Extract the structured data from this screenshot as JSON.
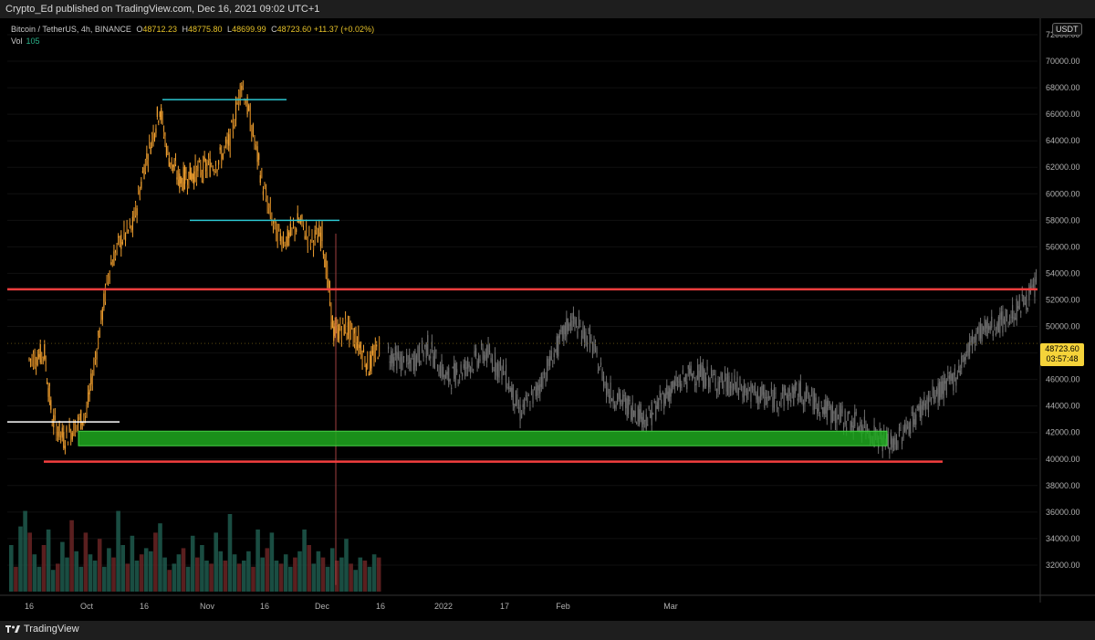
{
  "header": {
    "published": "Crypto_Ed published on TradingView.com, Dec 16, 2021 09:02 UTC+1"
  },
  "legend": {
    "symbol": "Bitcoin / TetherUS, 4h, BINANCE",
    "open_label": "O",
    "open": "48712.23",
    "high_label": "H",
    "high": "48775.80",
    "low_label": "L",
    "low": "48699.99",
    "close_label": "C",
    "close": "48723.60",
    "change": "+11.37 (+0.02%)",
    "vol_label": "Vol",
    "vol": "105"
  },
  "currency_badge": "USDT",
  "price_tag": {
    "price": "48723.60",
    "countdown": "03:57:48"
  },
  "footer": {
    "brand": "TradingView"
  },
  "colors": {
    "candle_orange": "#f0a030",
    "candle_projection": "#6f6f6f",
    "resistance": "#f23e3e",
    "support_zone": "#1ea81e",
    "cyan_level": "#2cc6d0",
    "white_level": "#ffffff",
    "price_tag_bg": "#f5d33a"
  },
  "chart_data": {
    "type": "line",
    "ylim": [
      30000,
      72000
    ],
    "y_ticks": [
      "72000.00",
      "70000.00",
      "68000.00",
      "66000.00",
      "64000.00",
      "62000.00",
      "60000.00",
      "58000.00",
      "56000.00",
      "54000.00",
      "52000.00",
      "50000.00",
      "48000.00",
      "46000.00",
      "44000.00",
      "42000.00",
      "40000.00",
      "38000.00",
      "36000.00",
      "34000.00",
      "32000.00"
    ],
    "x_ticks": [
      "16",
      "Oct",
      "16",
      "Nov",
      "16",
      "Dec",
      "16",
      "2022",
      "17",
      "Feb",
      "Mar"
    ],
    "series": [
      {
        "x": [
          "Sep 16",
          "Sep 20",
          "Sep 22",
          "Sep 25",
          "Sep 28",
          "Oct 1",
          "Oct 4",
          "Oct 7",
          "Oct 10",
          "Oct 13",
          "Oct 16",
          "Oct 20",
          "Oct 22",
          "Oct 25",
          "Oct 28",
          "Nov 1",
          "Nov 4",
          "Nov 7",
          "Nov 10",
          "Nov 13",
          "Nov 16",
          "Nov 19",
          "Nov 22",
          "Nov 25",
          "Nov 28",
          "Dec 1",
          "Dec 4",
          "Dec 7",
          "Dec 10",
          "Dec 13",
          "Dec 16"
        ],
        "values": [
          47500,
          48000,
          43000,
          41500,
          42500,
          43500,
          49000,
          54500,
          56500,
          57500,
          62000,
          66500,
          63000,
          61000,
          61500,
          62000,
          62500,
          64000,
          68500,
          64500,
          60000,
          57000,
          56500,
          58000,
          56500,
          57000,
          49500,
          50000,
          49000,
          47000,
          48700
        ]
      },
      {
        "x": [
          "Dec 18",
          "Dec 23",
          "Dec 28",
          "Jan 2",
          "Jan 7",
          "Jan 12",
          "Jan 17",
          "Jan 21",
          "Jan 25",
          "Jan 29",
          "Feb 3",
          "Feb 8",
          "Feb 13",
          "Feb 18",
          "Feb 23",
          "Feb 28",
          "Mar 4",
          "Mar 9",
          "Mar 14",
          "Mar 18",
          "Mar 22",
          "Mar 26",
          "Mar 30",
          "Apr 3",
          "Apr 7",
          "Apr 10",
          "Apr 14",
          "Apr 18"
        ],
        "values": [
          48000,
          47000,
          48500,
          46000,
          47000,
          48000,
          46500,
          43500,
          45000,
          47500,
          50500,
          49000,
          45000,
          44000,
          43000,
          45000,
          46500,
          45500,
          44500,
          45000,
          43500,
          42500,
          41000,
          44000,
          46000,
          49500,
          50500,
          53000
        ]
      }
    ],
    "levels": [
      {
        "type": "resistance",
        "value": 52800
      },
      {
        "type": "resistance",
        "value": 39800
      },
      {
        "type": "support-zone",
        "from": 41000,
        "to": 42100
      },
      {
        "type": "top",
        "value": 67100
      },
      {
        "type": "top",
        "value": 58000
      },
      {
        "type": "bottom",
        "value": 42800
      }
    ],
    "volume_scale": 2500,
    "volume": [
      1500,
      800,
      2100,
      2600,
      1900,
      1200,
      800,
      1500,
      2000,
      700,
      900,
      1600,
      1100,
      2300,
      1300,
      800,
      1900,
      1200,
      1000,
      1700,
      800,
      1400,
      1100,
      2600,
      1500,
      900,
      1800,
      1000,
      1200,
      1400,
      1300,
      1900,
      2200,
      1100,
      700,
      900,
      1200,
      1400,
      800,
      1800,
      1100,
      1500,
      1000,
      900,
      1900,
      1300,
      1000,
      2500,
      1200,
      900,
      1000,
      1300,
      800,
      2000,
      1100,
      1400,
      1900,
      1000,
      900,
      1200,
      800,
      1100,
      1300,
      2000,
      1500,
      900,
      1300,
      1100,
      800,
      1400,
      1000,
      1100,
      1700,
      900,
      700,
      1100,
      1000,
      800,
      1200,
      1100
    ]
  }
}
